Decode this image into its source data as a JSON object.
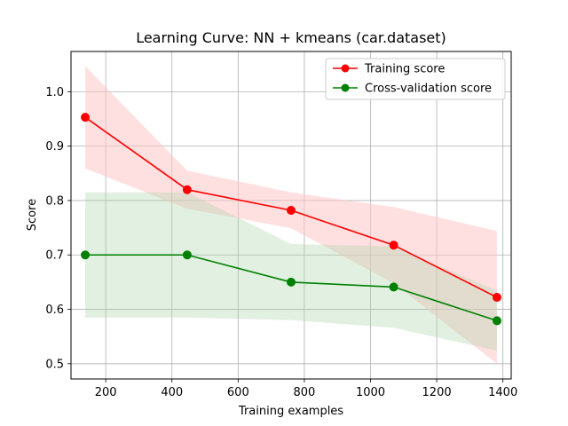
{
  "chart_data": {
    "type": "line",
    "title": "Learning Curve: NN + kmeans (car.dataset)",
    "xlabel": "Training examples",
    "ylabel": "Score",
    "xlim": [
      95,
      1425
    ],
    "ylim": [
      0.472,
      1.074
    ],
    "xticks": [
      200,
      400,
      600,
      800,
      1000,
      1200,
      1400
    ],
    "yticks": [
      0.5,
      0.6,
      0.7,
      0.8,
      0.9,
      1.0
    ],
    "ytick_labels": [
      "0.5",
      "0.6",
      "0.7",
      "0.8",
      "0.9",
      "1.0"
    ],
    "grid": true,
    "legend_position": "top-right",
    "x": [
      138,
      446,
      760,
      1070,
      1382
    ],
    "series": [
      {
        "name": "Training score",
        "color": "#ff0000",
        "band_color": "#ffc7c7",
        "values": [
          0.953,
          0.82,
          0.782,
          0.718,
          0.622
        ],
        "upper": [
          1.047,
          0.855,
          0.815,
          0.788,
          0.744
        ],
        "lower": [
          0.859,
          0.785,
          0.749,
          0.648,
          0.5
        ]
      },
      {
        "name": "Cross-validation score",
        "color": "#008000",
        "band_color": "#a8d4a8",
        "values": [
          0.7,
          0.7,
          0.65,
          0.641,
          0.579
        ],
        "upper": [
          0.815,
          0.815,
          0.72,
          0.716,
          0.634
        ],
        "lower": [
          0.585,
          0.585,
          0.58,
          0.566,
          0.524
        ]
      }
    ]
  }
}
